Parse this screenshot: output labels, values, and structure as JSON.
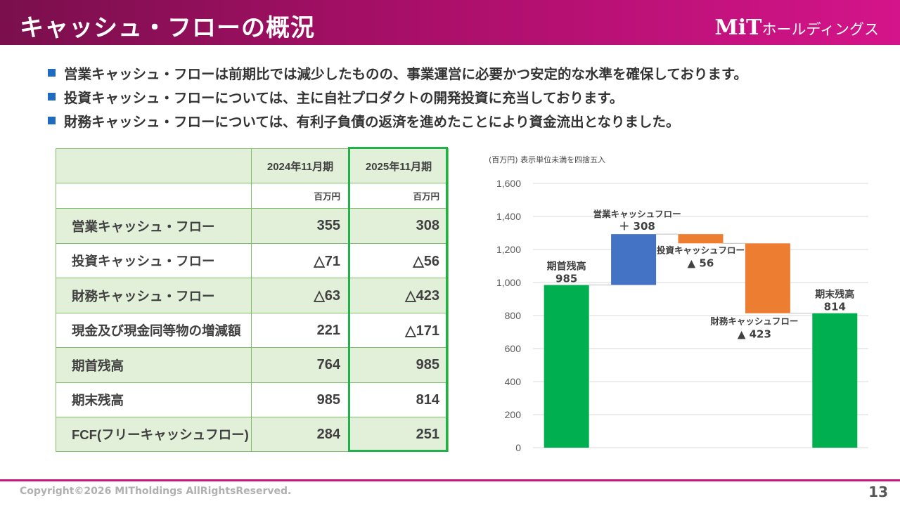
{
  "header": {
    "title": "キャッシュ・フローの概況",
    "logo_mark": "MiT",
    "logo_text": "ホールディングス"
  },
  "bullets": [
    "営業キャッシュ・フローは前期比では減少したものの、事業運営に必要かつ安定的な水準を確保しております。",
    "投資キャッシュ・フローについては、主に自社プロダクトの開発投資に充当しております。",
    "財務キャッシュ・フローについては、有利子負債の返済を進めたことにより資金流出となりました。"
  ],
  "table": {
    "columns": [
      "2024年11月期",
      "2025年11月期"
    ],
    "units": [
      "百万円",
      "百万円"
    ],
    "rows": [
      {
        "label": "営業キャッシュ・フロー",
        "values": [
          "355",
          "308"
        ]
      },
      {
        "label": "投資キャッシュ・フロー",
        "values": [
          "△71",
          "△56"
        ]
      },
      {
        "label": "財務キャッシュ・フロー",
        "values": [
          "△63",
          "△423"
        ]
      },
      {
        "label": "現金及び現金同等物の増減額",
        "values": [
          "221",
          "△171"
        ]
      },
      {
        "label": "期首残高",
        "values": [
          "764",
          "985"
        ]
      },
      {
        "label": "期末残高",
        "values": [
          "985",
          "814"
        ]
      },
      {
        "label": "FCF(フリーキャッシュフロー)",
        "values": [
          "284",
          "251"
        ]
      }
    ]
  },
  "chart_note": "(百万円) 表示単位未満を四捨五入",
  "chart_data": {
    "type": "waterfall",
    "title": "",
    "unit_note": "(百万円) 表示単位未満を四捨五入",
    "ylim": [
      0,
      1600
    ],
    "yticks": [
      0,
      200,
      400,
      600,
      800,
      1000,
      1200,
      1400,
      1600
    ],
    "ytick_labels": [
      "0",
      "200",
      "400",
      "600",
      "800",
      "1,000",
      "1,200",
      "1,400",
      "1,600"
    ],
    "grid": true,
    "steps": [
      {
        "name": "期首残高",
        "value_label": "985",
        "start": 0,
        "end": 985,
        "color": "#00b050"
      },
      {
        "name": "営業キャッシュフロー",
        "value_label": "＋ 308",
        "start": 985,
        "end": 1293,
        "color": "#4472c4"
      },
      {
        "name": "投資キャッシュフロー",
        "value_label": "▲ 56",
        "start": 1293,
        "end": 1237,
        "color": "#ed7d31"
      },
      {
        "name": "財務キャッシュフロー",
        "value_label": "▲ 423",
        "start": 1237,
        "end": 814,
        "color": "#ed7d31"
      },
      {
        "name": "期末残高",
        "value_label": "814",
        "start": 0,
        "end": 814,
        "color": "#00b050"
      }
    ]
  },
  "footer": {
    "copyright": "Copyright©2026 MITholdings AllRightsReserved.",
    "page": "13"
  }
}
